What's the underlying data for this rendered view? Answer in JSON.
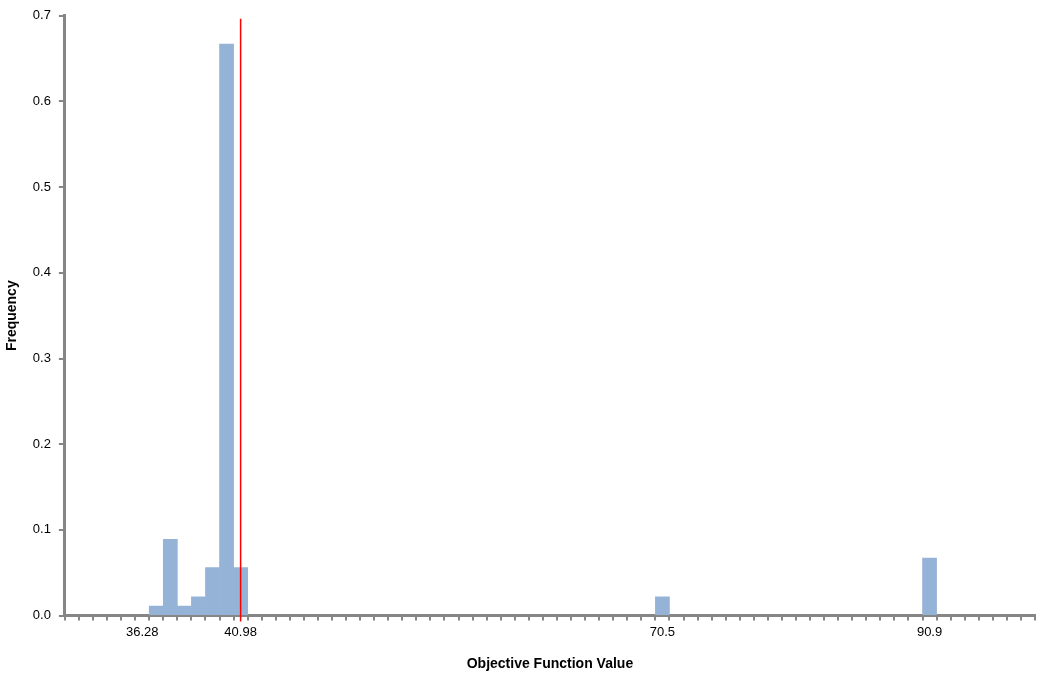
{
  "chart_data": {
    "type": "bar",
    "xlabel": "Objective Function Value",
    "ylabel": "Frequency",
    "categories": [
      null,
      null,
      null,
      null,
      null,
      "36.28",
      null,
      null,
      null,
      null,
      null,
      null,
      "40.98",
      null,
      null,
      null,
      null,
      null,
      null,
      null,
      null,
      null,
      null,
      null,
      null,
      null,
      null,
      null,
      null,
      null,
      null,
      null,
      null,
      null,
      null,
      null,
      null,
      null,
      null,
      null,
      null,
      null,
      "70.5",
      null,
      null,
      null,
      null,
      null,
      null,
      null,
      null,
      null,
      null,
      null,
      null,
      null,
      null,
      null,
      null,
      null,
      null,
      "90.9",
      null,
      null,
      null,
      null,
      null,
      null,
      null
    ],
    "values": [
      null,
      null,
      null,
      null,
      null,
      null,
      0.011,
      0.089,
      0.011,
      0.022,
      0.056,
      0.667,
      0.056,
      null,
      null,
      null,
      null,
      null,
      null,
      null,
      null,
      null,
      null,
      null,
      null,
      null,
      null,
      null,
      null,
      null,
      null,
      null,
      null,
      null,
      null,
      null,
      null,
      null,
      null,
      null,
      null,
      null,
      0.022,
      null,
      null,
      null,
      null,
      null,
      null,
      null,
      null,
      null,
      null,
      null,
      null,
      null,
      null,
      null,
      null,
      null,
      null,
      0.067,
      null,
      null,
      null,
      null,
      null,
      null,
      null
    ],
    "color": "#95b3d7",
    "ylim": [
      0,
      0.7
    ],
    "yticks": [
      {
        "value": 0,
        "label": "0.0"
      },
      {
        "value": 0.1,
        "label": "0.1"
      },
      {
        "value": 0.2,
        "label": "0.2"
      },
      {
        "value": 0.3,
        "label": "0.3"
      },
      {
        "value": 0.4,
        "label": "0.4"
      },
      {
        "value": 0.5,
        "label": "0.5"
      },
      {
        "value": 0.6,
        "label": "0.6"
      },
      {
        "value": 0.7,
        "label": "0.7"
      }
    ],
    "ref_lines": [
      {
        "axis": "x",
        "value": "40.98",
        "label": null,
        "color": "#ff0000"
      }
    ],
    "grid": false,
    "legend": false
  }
}
